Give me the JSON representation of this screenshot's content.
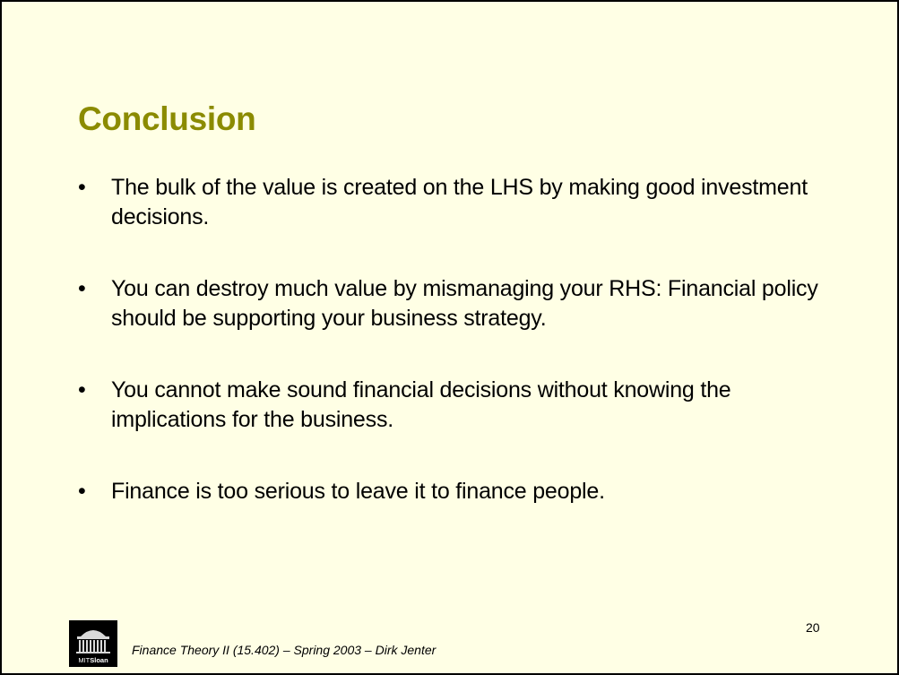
{
  "slide": {
    "title": "Conclusion",
    "bullets": [
      {
        "marker": "•",
        "text": "The bulk of the value is created on the LHS by making good investment decisions."
      },
      {
        "marker": "•",
        "text": "You can destroy much value by mismanaging your RHS: Financial policy should be supporting your business strategy."
      },
      {
        "marker": "•",
        "text": "You cannot make sound financial decisions without knowing the implications for the business."
      },
      {
        "marker": "•",
        "text": "Finance is too serious to leave it to finance people."
      }
    ],
    "footer": "Finance Theory II (15.402) – Spring 2003 – Dirk Jenter",
    "page_number": "20",
    "logo": {
      "icon": "mit-dome-icon",
      "brand_light": "MIT",
      "brand_bold": "Sloan"
    }
  },
  "colors": {
    "background": "#ffffe5",
    "title": "#8b8b00",
    "text": "#000000",
    "border": "#000000"
  }
}
